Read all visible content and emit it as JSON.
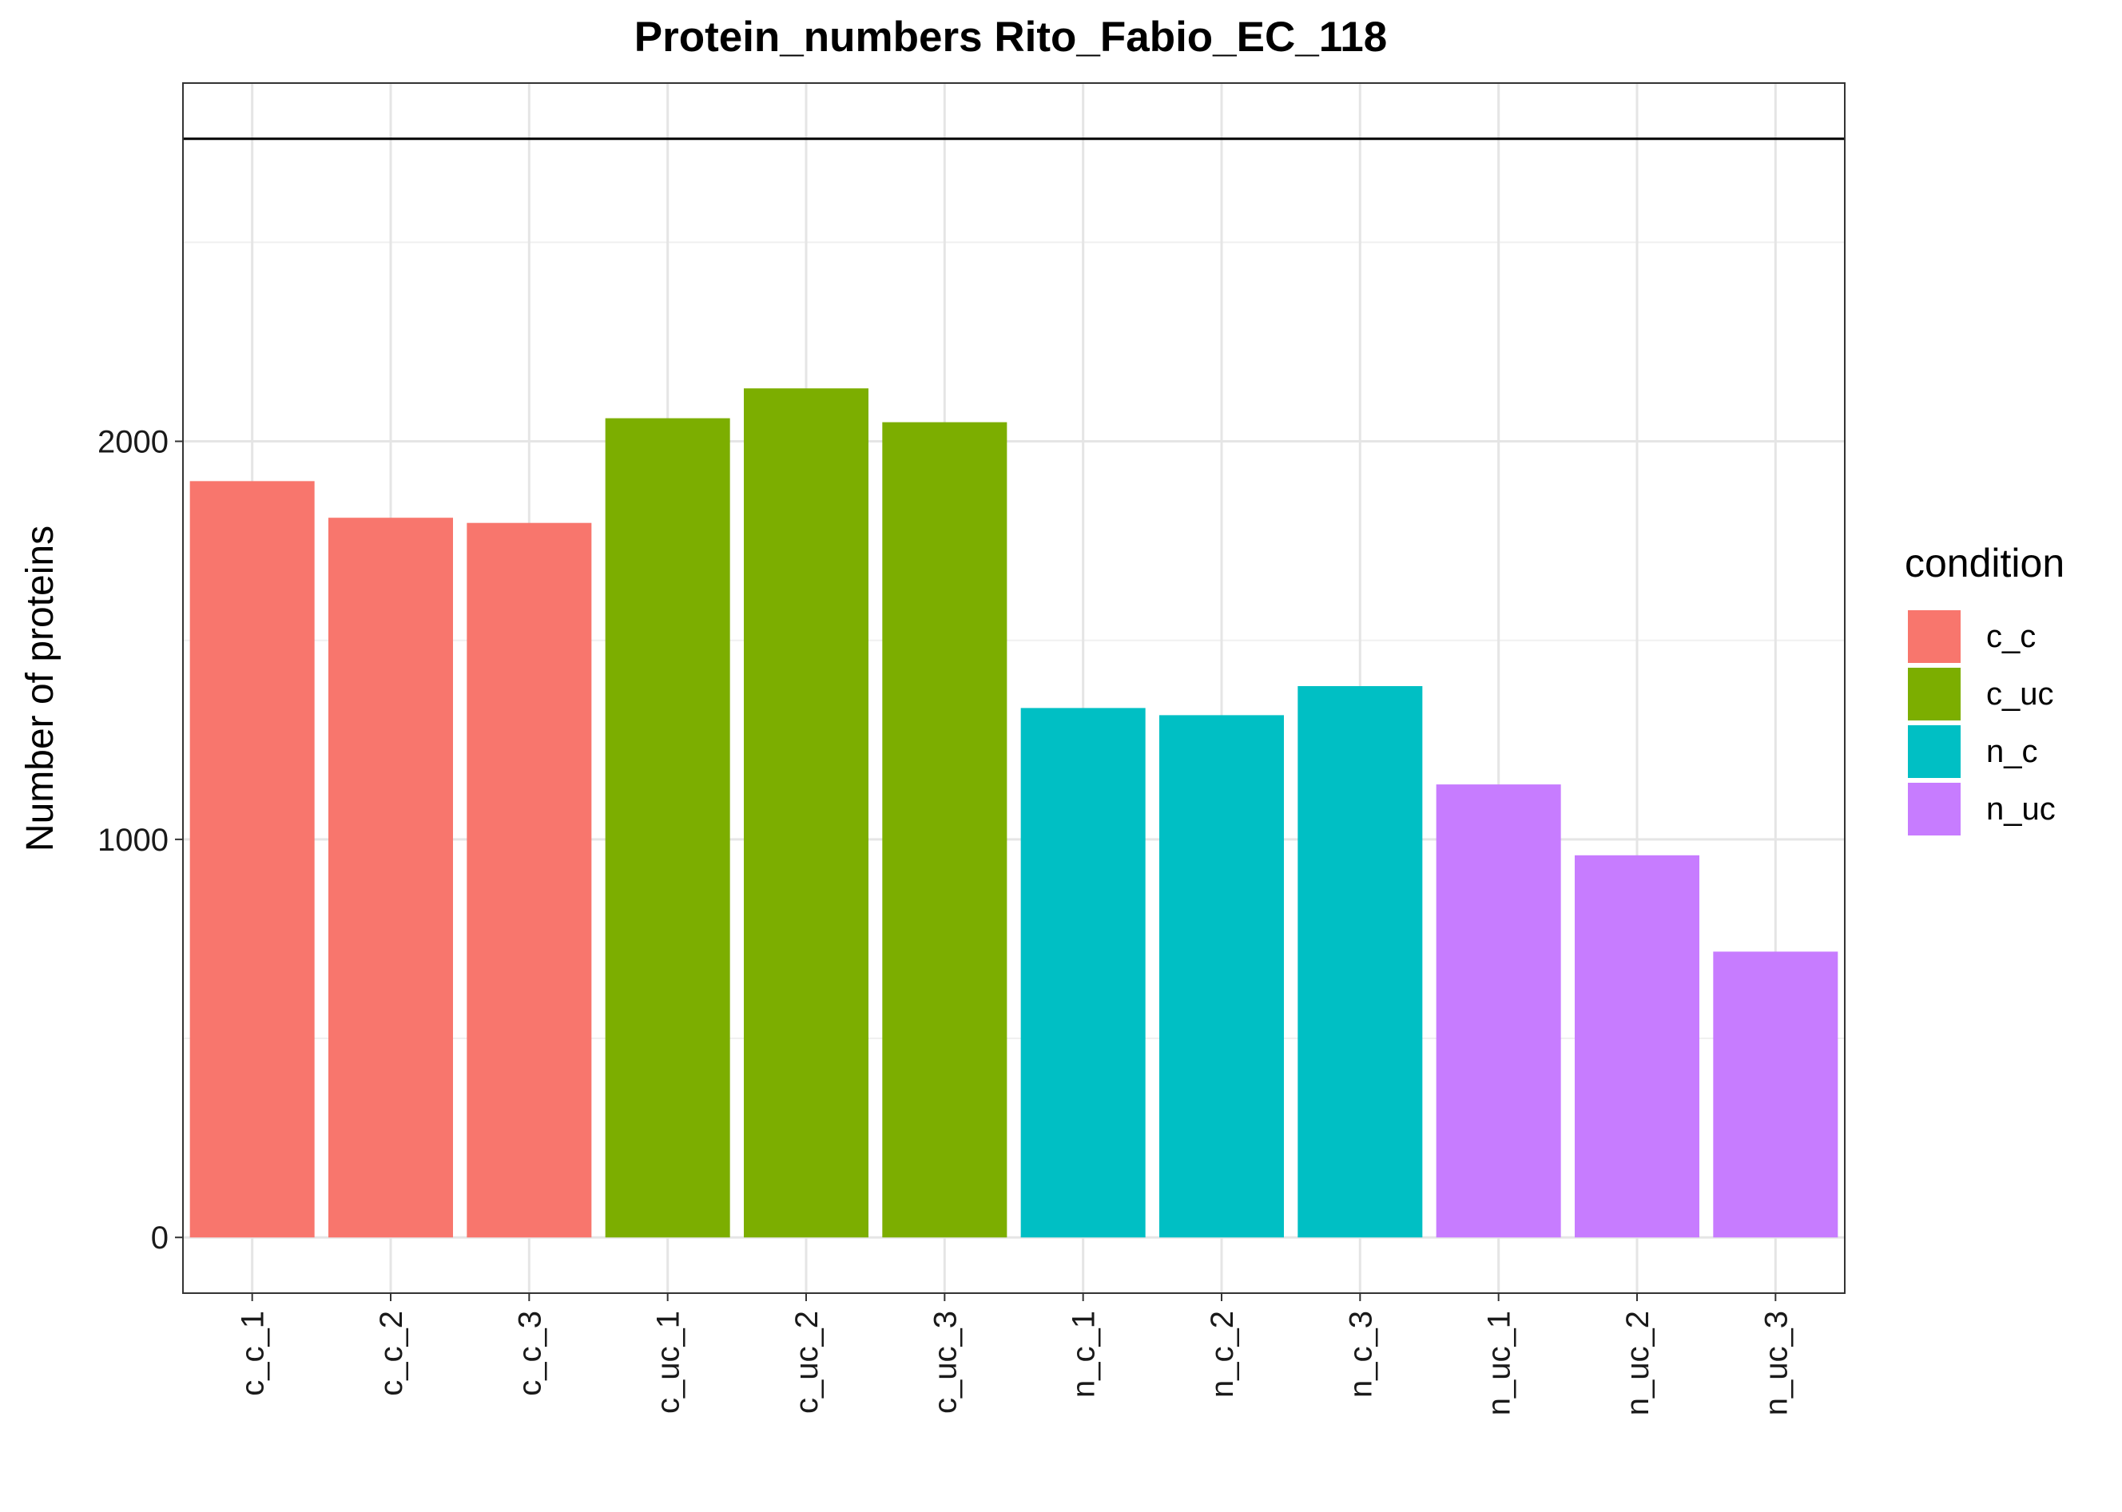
{
  "chart_data": {
    "type": "bar",
    "title": "Protein_numbers Rito_Fabio_EC_118",
    "xlabel": "",
    "ylabel": "Number of proteins",
    "ylim": [
      -140,
      2900
    ],
    "yticks": [
      0,
      1000,
      2000
    ],
    "hline": 2760,
    "grid": true,
    "legend_position": "right",
    "legend_title": "condition",
    "categories": [
      "c_c_1",
      "c_c_2",
      "c_c_3",
      "c_uc_1",
      "c_uc_2",
      "c_uc_3",
      "n_c_1",
      "n_c_2",
      "n_c_3",
      "n_uc_1",
      "n_uc_2",
      "n_uc_3"
    ],
    "values": [
      1900,
      1808,
      1795,
      2058,
      2133,
      2048,
      1330,
      1312,
      1385,
      1138,
      960,
      718
    ],
    "groups": [
      "c_c",
      "c_c",
      "c_c",
      "c_uc",
      "c_uc",
      "c_uc",
      "n_c",
      "n_c",
      "n_c",
      "n_uc",
      "n_uc",
      "n_uc"
    ],
    "legend": [
      {
        "name": "c_c",
        "color": "#F8766D"
      },
      {
        "name": "c_uc",
        "color": "#7CAE00"
      },
      {
        "name": "n_c",
        "color": "#00BFC4"
      },
      {
        "name": "n_uc",
        "color": "#C77CFF"
      }
    ]
  }
}
